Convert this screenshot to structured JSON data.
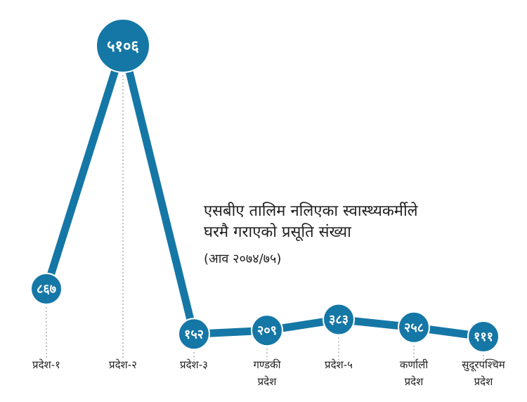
{
  "chart_data": {
    "type": "line",
    "title_lines": [
      "एसबीए तालिम नलिएका स्वास्थ्यकर्मीले",
      "घरमै गराएको प्रसूति संख्या"
    ],
    "subtitle": "(आव २०७४/७५)",
    "categories": [
      [
        "प्रदेश-१"
      ],
      [
        "प्रदेश-२"
      ],
      [
        "प्रदेश-३"
      ],
      [
        "गण्डकी",
        "प्रदेश"
      ],
      [
        "प्रदेश-५"
      ],
      [
        "कर्णाली",
        "प्रदेश"
      ],
      [
        "सुदूरपश्चिम",
        "प्रदेश"
      ]
    ],
    "values": [
      867,
      5106,
      152,
      209,
      383,
      258,
      111
    ],
    "value_labels": [
      "८६७",
      "५१०६",
      "१५२",
      "२०९",
      "३८३",
      "२५८",
      "१११"
    ],
    "colors": {
      "line": "#1577a6",
      "marker": "#1577a6",
      "leader": "#9a9a9a"
    }
  }
}
